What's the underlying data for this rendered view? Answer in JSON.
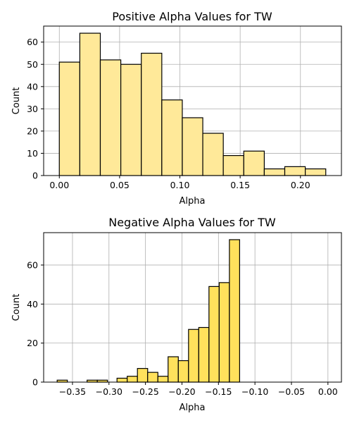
{
  "chart_data": [
    {
      "type": "bar",
      "title": "Positive Alpha Values for TW",
      "xlabel": "Alpha",
      "ylabel": "Count",
      "bar_color": "#ffe999",
      "grid": true,
      "xlim": [
        -0.013,
        0.234
      ],
      "ylim": [
        0,
        67.2
      ],
      "xticks": [
        0.0,
        0.05,
        0.1,
        0.15,
        0.2
      ],
      "xtick_labels": [
        "0.00",
        "0.05",
        "0.10",
        "0.15",
        "0.20"
      ],
      "yticks": [
        0,
        10,
        20,
        30,
        40,
        50,
        60
      ],
      "yticklabels": [
        "0",
        "10",
        "20",
        "30",
        "40",
        "50",
        "60"
      ],
      "bins": [
        {
          "x0": 0.0,
          "x1": 0.017,
          "value": 51
        },
        {
          "x0": 0.017,
          "x1": 0.034,
          "value": 64
        },
        {
          "x0": 0.034,
          "x1": 0.051,
          "value": 52
        },
        {
          "x0": 0.051,
          "x1": 0.068,
          "value": 50
        },
        {
          "x0": 0.068,
          "x1": 0.085,
          "value": 55
        },
        {
          "x0": 0.085,
          "x1": 0.102,
          "value": 34
        },
        {
          "x0": 0.102,
          "x1": 0.119,
          "value": 26
        },
        {
          "x0": 0.119,
          "x1": 0.136,
          "value": 19
        },
        {
          "x0": 0.136,
          "x1": 0.153,
          "value": 9
        },
        {
          "x0": 0.153,
          "x1": 0.17,
          "value": 11
        },
        {
          "x0": 0.17,
          "x1": 0.187,
          "value": 3
        },
        {
          "x0": 0.187,
          "x1": 0.204,
          "value": 4
        },
        {
          "x0": 0.204,
          "x1": 0.221,
          "value": 3
        }
      ]
    },
    {
      "type": "bar",
      "title": "Negative Alpha Values for TW",
      "xlabel": "Alpha",
      "ylabel": "Count",
      "bar_color": "#ffe15c",
      "grid": true,
      "xlim": [
        -0.3895,
        0.0185
      ],
      "ylim": [
        0,
        76.6
      ],
      "xticks": [
        -0.35,
        -0.3,
        -0.25,
        -0.2,
        -0.15,
        -0.1,
        -0.05,
        0.0
      ],
      "xtick_labels": [
        "−0.35",
        "−0.30",
        "−0.25",
        "−0.20",
        "−0.15",
        "−0.10",
        "−0.05",
        "0.00"
      ],
      "yticks": [
        0,
        20,
        40,
        60
      ],
      "yticklabels": [
        "0",
        "20",
        "40",
        "60"
      ],
      "bins": [
        {
          "x0": -0.371,
          "x1": -0.357,
          "value": 1
        },
        {
          "x0": -0.357,
          "x1": -0.343,
          "value": 0
        },
        {
          "x0": -0.33,
          "x1": -0.316,
          "value": 1
        },
        {
          "x0": -0.316,
          "x1": -0.302,
          "value": 1
        },
        {
          "x0": -0.289,
          "x1": -0.275,
          "value": 2
        },
        {
          "x0": -0.275,
          "x1": -0.261,
          "value": 3
        },
        {
          "x0": -0.261,
          "x1": -0.247,
          "value": 7
        },
        {
          "x0": -0.247,
          "x1": -0.233,
          "value": 5
        },
        {
          "x0": -0.233,
          "x1": -0.219,
          "value": 3
        },
        {
          "x0": -0.219,
          "x1": -0.205,
          "value": 13
        },
        {
          "x0": -0.205,
          "x1": -0.191,
          "value": 11
        },
        {
          "x0": -0.191,
          "x1": -0.177,
          "value": 27
        },
        {
          "x0": -0.177,
          "x1": -0.163,
          "value": 28
        },
        {
          "x0": -0.163,
          "x1": -0.149,
          "value": 49
        },
        {
          "x0": -0.149,
          "x1": -0.135,
          "value": 51
        },
        {
          "x0": -0.135,
          "x1": -0.121,
          "value": 73
        }
      ]
    }
  ]
}
